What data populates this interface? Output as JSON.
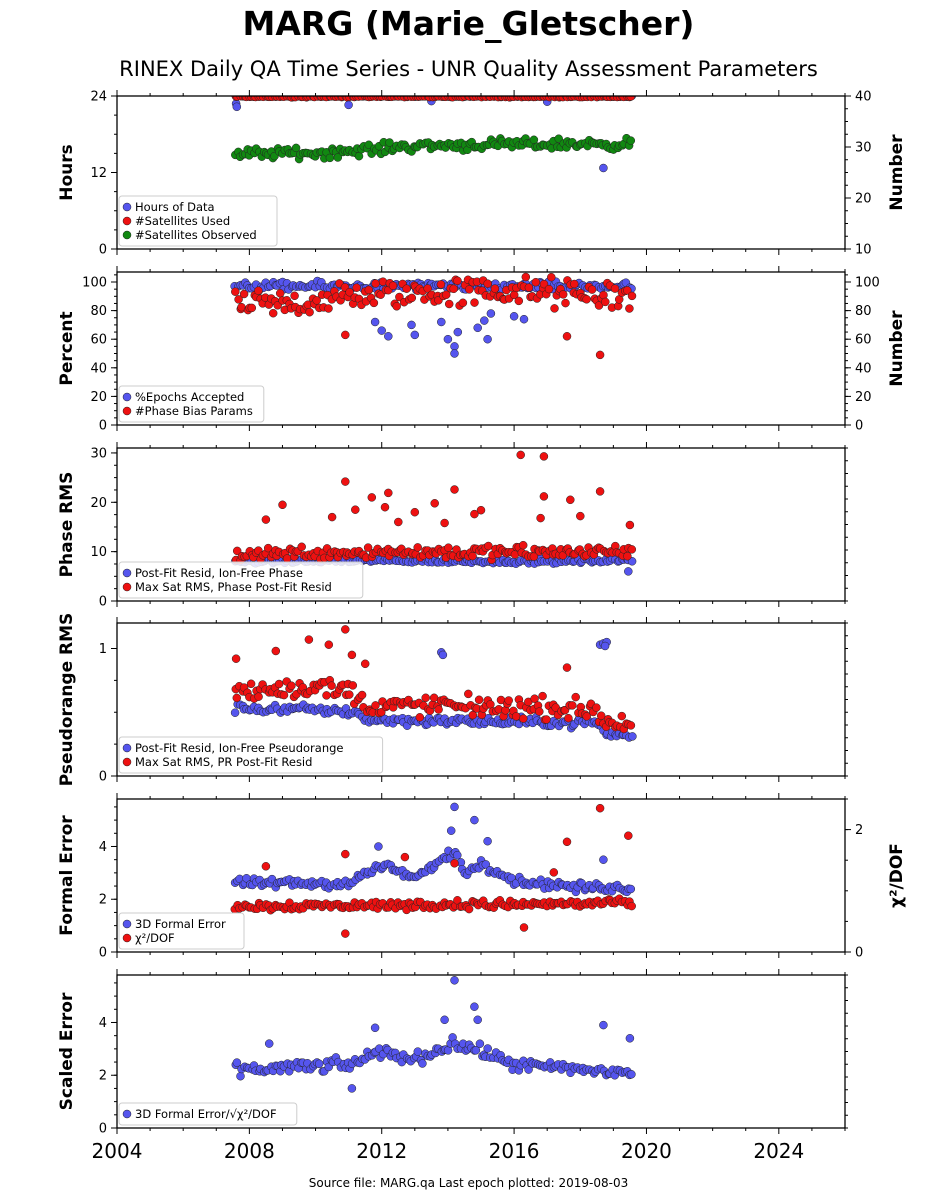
{
  "header": {
    "title": "MARG (Marie_Gletscher)",
    "subtitle": "RINEX Daily QA Time Series - UNR Quality Assessment Parameters"
  },
  "footer": {
    "text": "Source file: MARG.qa Last epoch plotted: 2019-08-03"
  },
  "chart_data": {
    "type": "scatter",
    "x_axis": {
      "range": [
        2004,
        2026
      ],
      "tick_labels": [
        "2004",
        "2008",
        "2012",
        "2016",
        "2020",
        "2024"
      ],
      "data_span": [
        2007.55,
        2019.59
      ]
    },
    "colors": {
      "blue": "#5555ee",
      "red": "#ee1111",
      "green": "#118811"
    },
    "panels": [
      {
        "id": "hours",
        "ylabel": "Hours",
        "ylim": [
          0,
          24
        ],
        "yticks": [
          "0",
          "12",
          "24"
        ],
        "right_ylabel": "Number",
        "right_ylim": [
          10,
          40
        ],
        "right_yticks": [
          "10",
          "20",
          "30",
          "40"
        ],
        "legend": [
          "Hours of Data",
          "#Satellites Used",
          "#Satellites Observed"
        ],
        "series": [
          {
            "name": "Hours of Data",
            "color": "blue",
            "axis": "left",
            "level": 24.0,
            "spread": 0.08,
            "outliers": [
              [
                2007.6,
                22.8
              ],
              [
                2007.62,
                22.3
              ],
              [
                2011.0,
                22.6
              ],
              [
                2013.5,
                23.2
              ],
              [
                2017.0,
                23.1
              ],
              [
                2018.7,
                12.7
              ]
            ]
          },
          {
            "name": "#Satellites Used",
            "color": "red",
            "axis": "left",
            "level": 23.9,
            "spread": 0.08,
            "outliers": []
          },
          {
            "name": "#Satellites Observed",
            "color": "green",
            "axis": "right",
            "trend": [
              [
                2007.55,
                28.6
              ],
              [
                2009.0,
                28.8
              ],
              [
                2010.0,
                28.8
              ],
              [
                2011.5,
                29.4
              ],
              [
                2012.8,
                30.2
              ],
              [
                2014.5,
                30.4
              ],
              [
                2016.0,
                30.5
              ],
              [
                2018.0,
                30.6
              ],
              [
                2019.59,
                30.6
              ]
            ],
            "spread": 0.9,
            "outliers": []
          }
        ]
      },
      {
        "id": "percent",
        "ylabel": "Percent",
        "ylim": [
          0,
          107
        ],
        "yticks": [
          "0",
          "20",
          "40",
          "60",
          "80",
          "100"
        ],
        "right_ylabel": "Number",
        "right_ylim": [
          0,
          107
        ],
        "right_yticks": [
          "0",
          "20",
          "40",
          "60",
          "80",
          "100"
        ],
        "legend": [
          "%Epochs Accepted",
          "#Phase Bias Params"
        ],
        "series": [
          {
            "name": "%Epochs Accepted",
            "color": "blue",
            "axis": "left",
            "level": 97,
            "spread": 2.5,
            "outliers": [
              [
                2011.8,
                72
              ],
              [
                2012.0,
                66
              ],
              [
                2012.2,
                62
              ],
              [
                2012.9,
                70
              ],
              [
                2013.0,
                63
              ],
              [
                2013.8,
                72
              ],
              [
                2014.0,
                60
              ],
              [
                2014.2,
                55
              ],
              [
                2014.2,
                50
              ],
              [
                2014.3,
                65
              ],
              [
                2014.9,
                68
              ],
              [
                2015.1,
                73
              ],
              [
                2015.2,
                60
              ],
              [
                2015.3,
                78
              ],
              [
                2016.0,
                76
              ],
              [
                2016.3,
                74
              ]
            ]
          },
          {
            "name": "#Phase Bias Params",
            "color": "red",
            "axis": "right",
            "trend": [
              [
                2007.55,
                83
              ],
              [
                2009.0,
                84
              ],
              [
                2010.5,
                88
              ],
              [
                2012.0,
                92
              ],
              [
                2014.0,
                93
              ],
              [
                2016.0,
                94
              ],
              [
                2018.0,
                91
              ],
              [
                2019.59,
                90
              ]
            ],
            "spread": 9,
            "outliers": [
              [
                2010.9,
                63
              ],
              [
                2017.6,
                62
              ],
              [
                2018.6,
                49
              ]
            ]
          }
        ]
      },
      {
        "id": "phase",
        "ylabel": "Phase RMS",
        "ylim": [
          0,
          31
        ],
        "yticks": [
          "0",
          "10",
          "20",
          "30"
        ],
        "legend": [
          "Post-Fit Resid, Ion-Free Phase",
          "Max Sat RMS, Phase Post-Fit Resid"
        ],
        "series": [
          {
            "name": "Post-Fit Resid, Ion-Free Phase",
            "color": "blue",
            "axis": "left",
            "trend": [
              [
                2007.55,
                8.0
              ],
              [
                2012.0,
                8.2
              ],
              [
                2016.0,
                8.0
              ],
              [
                2019.59,
                8.2
              ]
            ],
            "spread": 0.4,
            "outliers": [
              [
                2019.45,
                6.0
              ]
            ]
          },
          {
            "name": "Max Sat RMS, Phase Post-Fit Resid",
            "color": "red",
            "axis": "left",
            "trend": [
              [
                2007.55,
                9.5
              ],
              [
                2012.0,
                10.0
              ],
              [
                2016.0,
                9.8
              ],
              [
                2019.59,
                10.0
              ]
            ],
            "spread": 1.2,
            "outliers": [
              [
                2016.2,
                29.6
              ],
              [
                2016.9,
                29.3
              ],
              [
                2010.9,
                24.2
              ],
              [
                2014.2,
                22.6
              ],
              [
                2018.6,
                22.2
              ],
              [
                2016.9,
                21.2
              ],
              [
                2017.7,
                20.5
              ],
              [
                2012.2,
                21.9
              ],
              [
                2011.7,
                21.0
              ],
              [
                2013.6,
                19.8
              ],
              [
                2009.0,
                19.5
              ],
              [
                2012.1,
                19.0
              ],
              [
                2015.0,
                18.4
              ],
              [
                2008.5,
                16.5
              ],
              [
                2010.5,
                17.0
              ],
              [
                2013.0,
                18.0
              ],
              [
                2014.8,
                17.6
              ],
              [
                2012.5,
                16.0
              ],
              [
                2016.8,
                16.8
              ],
              [
                2018.0,
                17.2
              ],
              [
                2011.2,
                18.5
              ],
              [
                2013.9,
                15.8
              ],
              [
                2019.5,
                15.4
              ]
            ]
          }
        ]
      },
      {
        "id": "pseudorange",
        "ylabel": "Pseudorange RMS",
        "ylim": [
          0,
          1.2
        ],
        "yticks": [
          "0",
          "1"
        ],
        "legend": [
          "Post-Fit Resid, Ion-Free Pseudorange",
          "Max Sat RMS, PR Post-Fit Resid"
        ],
        "series": [
          {
            "name": "Post-Fit Resid, Ion-Free Pseudorange",
            "color": "blue",
            "axis": "left",
            "trend": [
              [
                2007.55,
                0.53
              ],
              [
                2010.0,
                0.52
              ],
              [
                2011.3,
                0.5
              ],
              [
                2011.5,
                0.44
              ],
              [
                2014.0,
                0.43
              ],
              [
                2017.0,
                0.42
              ],
              [
                2018.5,
                0.42
              ],
              [
                2018.8,
                0.33
              ],
              [
                2019.59,
                0.31
              ]
            ],
            "spread": 0.03,
            "outliers": [
              [
                2013.8,
                0.97
              ],
              [
                2013.85,
                0.95
              ],
              [
                2018.6,
                1.03
              ],
              [
                2018.7,
                1.04
              ],
              [
                2018.8,
                1.05
              ],
              [
                2018.75,
                1.02
              ]
            ]
          },
          {
            "name": "Max Sat RMS, PR Post-Fit Resid",
            "color": "red",
            "axis": "left",
            "trend": [
              [
                2007.55,
                0.65
              ],
              [
                2009.5,
                0.7
              ],
              [
                2011.0,
                0.68
              ],
              [
                2011.5,
                0.55
              ],
              [
                2014.0,
                0.55
              ],
              [
                2017.0,
                0.53
              ],
              [
                2018.5,
                0.52
              ],
              [
                2018.8,
                0.42
              ],
              [
                2019.59,
                0.4
              ]
            ],
            "spread": 0.07,
            "outliers": [
              [
                2010.9,
                1.15
              ],
              [
                2008.8,
                0.98
              ],
              [
                2009.8,
                1.07
              ],
              [
                2010.4,
                1.03
              ],
              [
                2007.6,
                0.92
              ],
              [
                2011.1,
                0.95
              ],
              [
                2017.6,
                0.85
              ],
              [
                2011.5,
                0.88
              ]
            ]
          }
        ]
      },
      {
        "id": "formal",
        "ylabel": "Formal Error",
        "ylim": [
          0,
          5.8
        ],
        "yticks": [
          "0",
          "2",
          "4"
        ],
        "right_ylabel": "χ²/DOF",
        "right_ylim": [
          0,
          2.5
        ],
        "right_yticks": [
          "0",
          "2"
        ],
        "legend": [
          "3D Formal Error",
          "χ²/DOF"
        ],
        "series": [
          {
            "name": "3D Formal Error",
            "color": "blue",
            "axis": "left",
            "trend": [
              [
                2007.55,
                2.6
              ],
              [
                2011.0,
                2.6
              ],
              [
                2012.0,
                3.3
              ],
              [
                2013.0,
                2.8
              ],
              [
                2014.2,
                3.8
              ],
              [
                2014.6,
                2.9
              ],
              [
                2015.0,
                3.4
              ],
              [
                2016.0,
                2.7
              ],
              [
                2018.0,
                2.45
              ],
              [
                2019.59,
                2.4
              ]
            ],
            "spread": 0.15,
            "outliers": [
              [
                2014.2,
                5.5
              ],
              [
                2014.8,
                5.0
              ],
              [
                2014.1,
                4.6
              ],
              [
                2015.2,
                4.2
              ],
              [
                2018.7,
                3.5
              ],
              [
                2011.9,
                4.0
              ]
            ]
          },
          {
            "name": "χ²/DOF",
            "color": "red",
            "axis": "right",
            "trend": [
              [
                2007.55,
                0.75
              ],
              [
                2011.0,
                0.76
              ],
              [
                2016.0,
                0.78
              ],
              [
                2019.59,
                0.8
              ]
            ],
            "spread": 0.06,
            "outliers": [
              [
                2018.6,
                2.35
              ],
              [
                2019.45,
                1.9
              ],
              [
                2017.6,
                1.8
              ],
              [
                2010.9,
                1.6
              ],
              [
                2012.7,
                1.55
              ],
              [
                2008.5,
                1.4
              ],
              [
                2014.2,
                1.45
              ],
              [
                2017.2,
                1.3
              ],
              [
                2010.9,
                0.3
              ],
              [
                2016.3,
                0.4
              ]
            ]
          }
        ]
      },
      {
        "id": "scaled",
        "ylabel": "Scaled Error",
        "ylim": [
          0,
          5.8
        ],
        "yticks": [
          "0",
          "2",
          "4"
        ],
        "legend": [
          "3D Formal Error/√χ²/DOF"
        ],
        "series": [
          {
            "name": "3D Formal Error/√χ²/DOF",
            "color": "blue",
            "axis": "left",
            "trend": [
              [
                2007.55,
                2.2
              ],
              [
                2011.0,
                2.4
              ],
              [
                2012.0,
                2.9
              ],
              [
                2013.0,
                2.6
              ],
              [
                2014.2,
                3.2
              ],
              [
                2015.0,
                2.9
              ],
              [
                2016.0,
                2.4
              ],
              [
                2018.0,
                2.2
              ],
              [
                2019.59,
                2.1
              ]
            ],
            "spread": 0.2,
            "outliers": [
              [
                2014.2,
                5.6
              ],
              [
                2014.8,
                4.6
              ],
              [
                2014.9,
                4.1
              ],
              [
                2013.9,
                4.1
              ],
              [
                2018.7,
                3.9
              ],
              [
                2011.8,
                3.8
              ],
              [
                2011.1,
                1.5
              ],
              [
                2019.5,
                3.4
              ],
              [
                2008.6,
                3.2
              ]
            ]
          }
        ]
      }
    ]
  }
}
